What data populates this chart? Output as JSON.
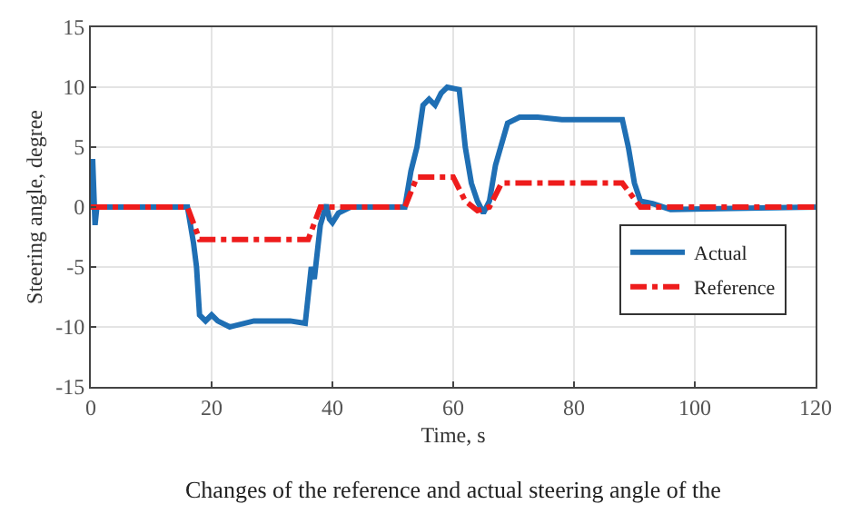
{
  "chart_data": {
    "type": "line",
    "xlabel": "Time, s",
    "ylabel": "Steering angle, degree",
    "xlim": [
      0,
      120
    ],
    "xticks": [
      0,
      20,
      40,
      60,
      80,
      100,
      120
    ],
    "ylim": [
      -15,
      15
    ],
    "yticks": [
      -15,
      -10,
      -5,
      0,
      5,
      10,
      15
    ],
    "grid": true,
    "legend": "bottom right",
    "marker": "none",
    "annotations": [
      "Changes of the reference and actual steering angle of the"
    ],
    "series": [
      {
        "name": "Actual",
        "color": "#1f6fb4",
        "line_style": "solid",
        "x": [
          0,
          0.3,
          0.7,
          1,
          16,
          17,
          17.5,
          18,
          19,
          20,
          21,
          23,
          27,
          33,
          35.5,
          36.5,
          37,
          38,
          39,
          39.5,
          40,
          41,
          43,
          45,
          52,
          53,
          54,
          55,
          56,
          57,
          58,
          59,
          61,
          62,
          63,
          64,
          65,
          66,
          67,
          69,
          71,
          74,
          78,
          88,
          89,
          90,
          91,
          93,
          96,
          120
        ],
        "values": [
          0,
          4,
          -1.5,
          0,
          0,
          -3,
          -5,
          -9,
          -9.5,
          -9,
          -9.5,
          -10,
          -9.5,
          -9.5,
          -9.7,
          -5,
          -6,
          -1.5,
          0.2,
          -1,
          -1.3,
          -0.5,
          0,
          0,
          0,
          3,
          5,
          8.5,
          9,
          8.5,
          9.5,
          10,
          9.8,
          5,
          2,
          0.5,
          -0.5,
          0.5,
          3.5,
          7,
          7.5,
          7.5,
          7.3,
          7.3,
          5,
          2,
          0.5,
          0.3,
          -0.2,
          0
        ]
      },
      {
        "name": "Reference",
        "color": "#ee1c1c",
        "line_style": "dashdot",
        "x": [
          0,
          16,
          18,
          36,
          38,
          52,
          54,
          60,
          62,
          64,
          66,
          68,
          88,
          91,
          120
        ],
        "values": [
          0,
          0,
          -2.7,
          -2.7,
          0,
          0,
          2.5,
          2.5,
          0.5,
          -0.3,
          0,
          2,
          2,
          0,
          0
        ]
      }
    ]
  }
}
